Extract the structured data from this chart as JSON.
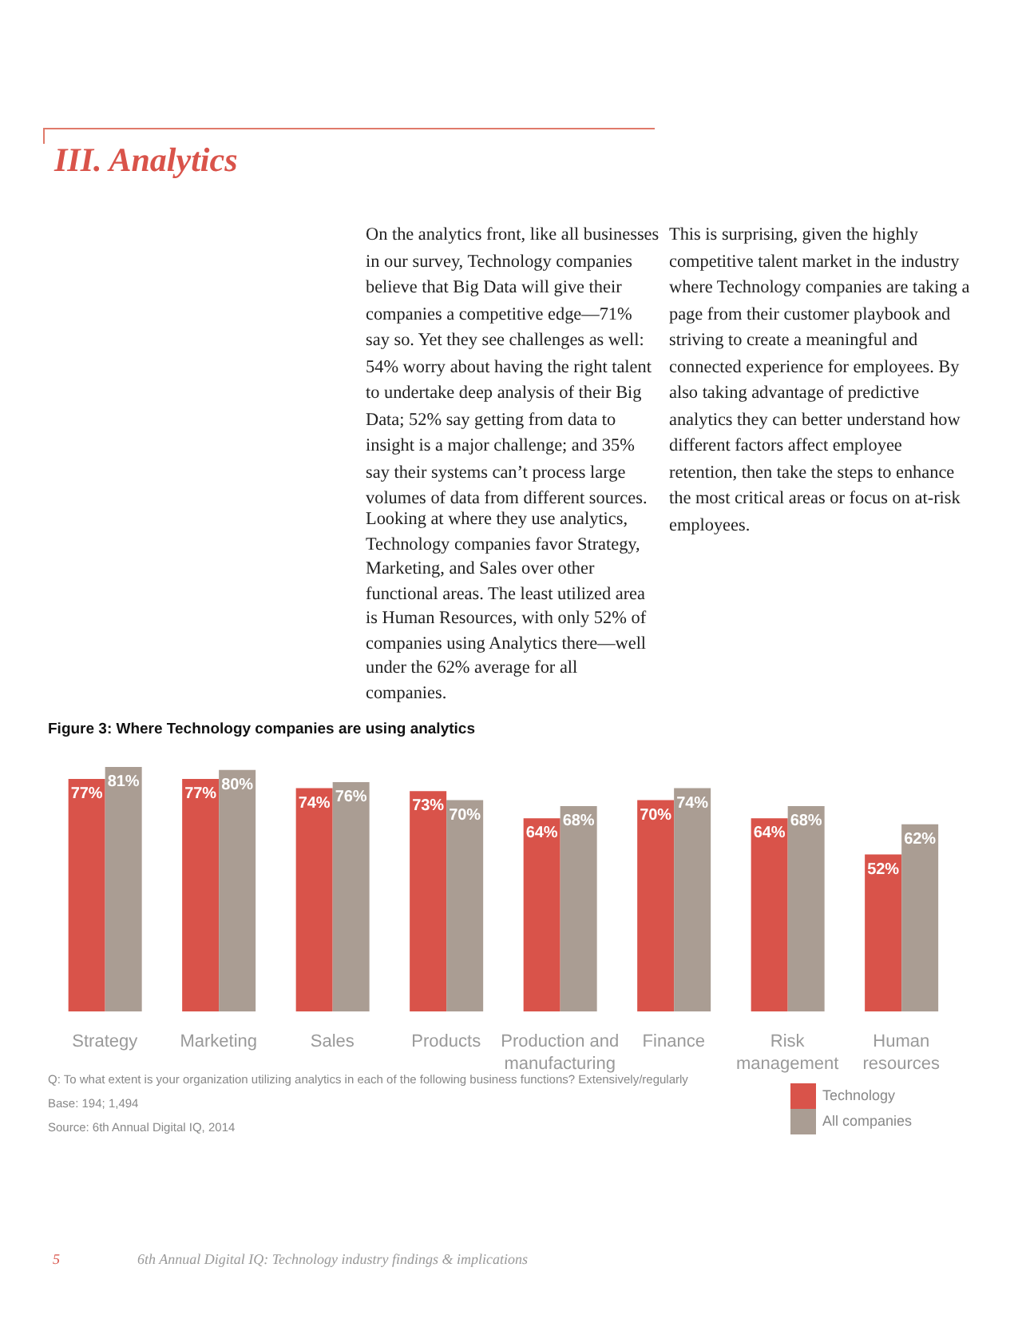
{
  "chart_data": {
    "type": "bar",
    "title": "Figure 3: Where Technology companies are using analytics",
    "categories": [
      "Strategy",
      "Marketing",
      "Sales",
      "Products",
      "Production and manufacturing",
      "Finance",
      "Risk management",
      "Human resources"
    ],
    "series": [
      {
        "name": "Technology",
        "color": "#d9534a",
        "values": [
          77,
          77,
          74,
          73,
          64,
          70,
          64,
          52
        ],
        "value_labels": [
          "77%",
          "77%",
          "74%",
          "73%",
          "64%",
          "70%",
          "64%",
          "52%"
        ]
      },
      {
        "name": "All companies",
        "color": "#aa9d93",
        "values": [
          81,
          80,
          76,
          70,
          68,
          74,
          68,
          62
        ],
        "value_labels": [
          "81%",
          "80%",
          "76%",
          "70%",
          "68%",
          "74%",
          "68%",
          "62%"
        ]
      }
    ],
    "legend": "bottom right",
    "annotations": [
      "III. Analytics",
      "On the analytics front, like all businesses in our survey, Technology companies believe that Big Data will give their companies a competitive edge—71% say so. Yet they see challenges as well: 54% worry about having the right talent to undertake deep analysis of their Big Data; 52% say getting from data to insight is a major challenge; and 35% say their systems can’t process large volumes of data from different sources.",
      "Looking at where they use analytics, Technology companies favor Strategy, Marketing, and Sales over other functional areas. The least utilized area is Human Resources, with only 52% of companies using Analytics there—well under the 62% average for all companies.",
      "This is surprising, given the highly competitive talent market in the industry where Technology companies are taking a page from their customer playbook and striving to create a meaningful and connected experience for employees. By also taking advantage of predictive analytics they can better understand how different factors affect employee retention, then take the steps to enhance the most critical areas or focus on at-risk employees.",
      "Q: To what extent is your organization utilizing analytics in each of the following business functions? Extensively/regularly",
      "Base: 194; 1,494",
      "Source: 6th Annual Digital IQ, 2014",
      "5",
      "6th Annual Digital IQ: Technology industry findings & implications"
    ]
  }
}
